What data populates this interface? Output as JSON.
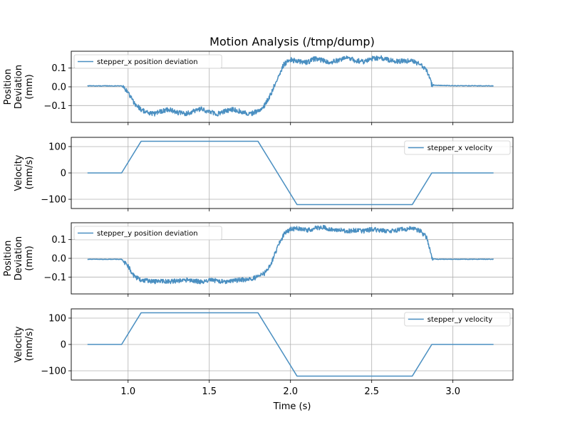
{
  "title": "Motion Analysis (/tmp/dump)",
  "colors": {
    "line": "#4a8fc1",
    "grid": "#b0b0b0",
    "axis": "#000000"
  },
  "chart_data": [
    {
      "type": "line",
      "ylabel": [
        "Position",
        "Deviation",
        "(mm)"
      ],
      "xlim": [
        0.65,
        3.37
      ],
      "ylim": [
        -0.19,
        0.19
      ],
      "yticks": [
        -0.1,
        0.0,
        0.1
      ],
      "ytick_labels": [
        "−0.1",
        "0.0",
        "0.1"
      ],
      "grid": true,
      "legend": {
        "placement": "upper left",
        "label": "stepper_x position deviation"
      },
      "series": [
        {
          "name": "stepper_x position deviation",
          "x": [
            0.75,
            0.96,
            1.0,
            1.04,
            1.08,
            1.12,
            1.16,
            1.2,
            1.25,
            1.3,
            1.35,
            1.4,
            1.45,
            1.5,
            1.55,
            1.6,
            1.65,
            1.7,
            1.75,
            1.8,
            1.84,
            1.88,
            1.92,
            1.96,
            2.0,
            2.05,
            2.1,
            2.15,
            2.2,
            2.25,
            2.3,
            2.35,
            2.4,
            2.45,
            2.5,
            2.55,
            2.6,
            2.65,
            2.7,
            2.75,
            2.8,
            2.84,
            2.87,
            2.9,
            3.0,
            3.25
          ],
          "y": [
            0.005,
            0.005,
            -0.03,
            -0.09,
            -0.12,
            -0.14,
            -0.145,
            -0.13,
            -0.12,
            -0.135,
            -0.145,
            -0.13,
            -0.12,
            -0.135,
            -0.145,
            -0.13,
            -0.12,
            -0.135,
            -0.145,
            -0.13,
            -0.1,
            -0.04,
            0.05,
            0.12,
            0.145,
            0.135,
            0.13,
            0.15,
            0.14,
            0.13,
            0.145,
            0.155,
            0.14,
            0.135,
            0.15,
            0.155,
            0.145,
            0.135,
            0.14,
            0.135,
            0.12,
            0.09,
            0.01,
            0.008,
            0.006,
            0.005
          ],
          "noise": 0.013
        }
      ]
    },
    {
      "type": "line",
      "ylabel": [
        "Velocity",
        "(mm/s)"
      ],
      "xlim": [
        0.65,
        3.37
      ],
      "ylim": [
        -135,
        135
      ],
      "yticks": [
        -100,
        0,
        100
      ],
      "ytick_labels": [
        "−100",
        "0",
        "100"
      ],
      "grid": true,
      "legend": {
        "placement": "upper right",
        "label": "stepper_x velocity"
      },
      "series": [
        {
          "name": "stepper_x velocity",
          "x": [
            0.75,
            0.96,
            1.08,
            1.8,
            2.04,
            2.75,
            2.87,
            3.25
          ],
          "y": [
            0,
            0,
            120,
            120,
            -120,
            -120,
            0,
            0
          ],
          "noise": 0
        }
      ]
    },
    {
      "type": "line",
      "ylabel": [
        "Position",
        "Deviation",
        "(mm)"
      ],
      "xlim": [
        0.65,
        3.37
      ],
      "ylim": [
        -0.19,
        0.19
      ],
      "yticks": [
        -0.1,
        0.0,
        0.1
      ],
      "ytick_labels": [
        "−0.1",
        "0.0",
        "0.1"
      ],
      "grid": true,
      "legend": {
        "placement": "upper left",
        "label": "stepper_y position deviation"
      },
      "series": [
        {
          "name": "stepper_y position deviation",
          "x": [
            0.75,
            0.96,
            1.0,
            1.04,
            1.08,
            1.12,
            1.16,
            1.2,
            1.25,
            1.3,
            1.35,
            1.4,
            1.45,
            1.5,
            1.55,
            1.6,
            1.65,
            1.7,
            1.75,
            1.8,
            1.84,
            1.88,
            1.92,
            1.96,
            2.0,
            2.05,
            2.1,
            2.15,
            2.2,
            2.25,
            2.3,
            2.35,
            2.4,
            2.45,
            2.5,
            2.55,
            2.6,
            2.65,
            2.7,
            2.75,
            2.8,
            2.84,
            2.87,
            2.9,
            3.0,
            3.25
          ],
          "y": [
            -0.005,
            -0.005,
            -0.04,
            -0.1,
            -0.115,
            -0.12,
            -0.125,
            -0.12,
            -0.125,
            -0.12,
            -0.115,
            -0.12,
            -0.125,
            -0.115,
            -0.12,
            -0.125,
            -0.12,
            -0.115,
            -0.11,
            -0.1,
            -0.08,
            -0.03,
            0.06,
            0.13,
            0.155,
            0.16,
            0.15,
            0.16,
            0.165,
            0.155,
            0.15,
            0.145,
            0.15,
            0.145,
            0.155,
            0.15,
            0.145,
            0.15,
            0.155,
            0.16,
            0.145,
            0.11,
            0.0,
            -0.005,
            -0.005,
            -0.005
          ],
          "noise": 0.012
        }
      ]
    },
    {
      "type": "line",
      "ylabel": [
        "Velocity",
        "(mm/s)"
      ],
      "xlim": [
        0.65,
        3.37
      ],
      "ylim": [
        -135,
        135
      ],
      "yticks": [
        -100,
        0,
        100
      ],
      "ytick_labels": [
        "−100",
        "0",
        "100"
      ],
      "grid": true,
      "xlabel": "Time (s)",
      "xticks": [
        1.0,
        1.5,
        2.0,
        2.5,
        3.0
      ],
      "xtick_labels": [
        "1.0",
        "1.5",
        "2.0",
        "2.5",
        "3.0"
      ],
      "legend": {
        "placement": "upper right",
        "label": "stepper_y velocity"
      },
      "series": [
        {
          "name": "stepper_y velocity",
          "x": [
            0.75,
            0.96,
            1.08,
            1.8,
            2.04,
            2.75,
            2.87,
            3.25
          ],
          "y": [
            0,
            0,
            120,
            120,
            -120,
            -120,
            0,
            0
          ],
          "noise": 0
        }
      ]
    }
  ]
}
